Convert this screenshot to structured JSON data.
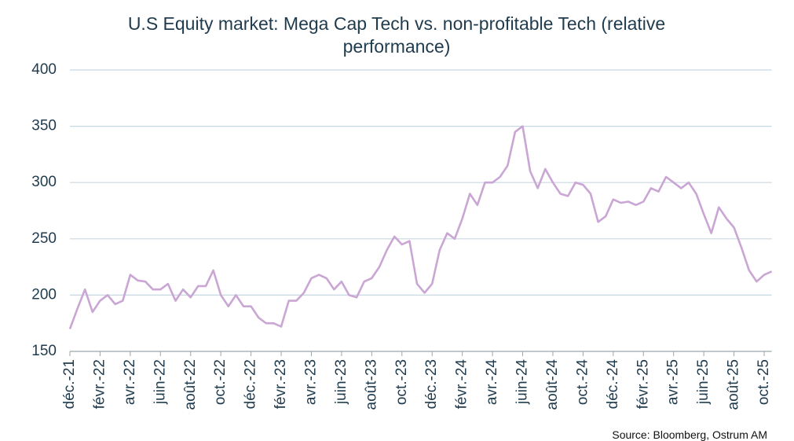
{
  "chart_data": {
    "type": "line",
    "title": "U.S Equity market: Mega Cap Tech vs. non-profitable Tech (relative performance)",
    "source": "Source: Bloomberg, Ostrum AM",
    "categories": [
      "déc.-21",
      null,
      null,
      null,
      "févr.-22",
      null,
      null,
      null,
      "avr.-22",
      null,
      null,
      null,
      "juin-22",
      null,
      null,
      null,
      "août-22",
      null,
      null,
      null,
      "oct.-22",
      null,
      null,
      null,
      "déc.-22",
      null,
      null,
      null,
      "févr.-23",
      null,
      null,
      null,
      "avr.-23",
      null,
      null,
      null,
      "juin-23",
      null,
      null,
      null,
      "août-23",
      null,
      null,
      null,
      "oct.-23",
      null,
      null,
      null,
      "déc.-23",
      null,
      null,
      null,
      "févr.-24",
      null,
      null,
      null,
      "avr.-24",
      null,
      null,
      null,
      "juin-24",
      null,
      null,
      null,
      "août-24",
      null,
      null,
      null,
      "oct.-24",
      null,
      null,
      null,
      "déc.-24",
      null,
      null,
      null,
      "févr.-25",
      null,
      null,
      null,
      "avr.-25",
      null,
      null,
      null,
      "juin-25",
      null,
      null,
      null,
      "août-25",
      null,
      null,
      null,
      "oct.-25",
      null
    ],
    "values": [
      170,
      188,
      205,
      185,
      195,
      200,
      192,
      195,
      218,
      213,
      212,
      205,
      205,
      210,
      195,
      205,
      198,
      208,
      208,
      222,
      200,
      190,
      200,
      190,
      190,
      180,
      175,
      175,
      172,
      195,
      195,
      202,
      215,
      218,
      215,
      205,
      212,
      200,
      198,
      212,
      215,
      225,
      240,
      252,
      245,
      248,
      210,
      202,
      210,
      240,
      255,
      250,
      268,
      290,
      280,
      300,
      300,
      305,
      315,
      345,
      350,
      310,
      295,
      312,
      300,
      290,
      288,
      300,
      298,
      290,
      265,
      270,
      285,
      282,
      283,
      280,
      283,
      295,
      292,
      305,
      300,
      295,
      300,
      290,
      272,
      255,
      278,
      268,
      260,
      242,
      222,
      212,
      218,
      221
    ],
    "color": "#c9a6d4",
    "ylim": [
      150,
      400
    ],
    "yticks": [
      150,
      200,
      250,
      300,
      350,
      400
    ],
    "grid": true
  }
}
